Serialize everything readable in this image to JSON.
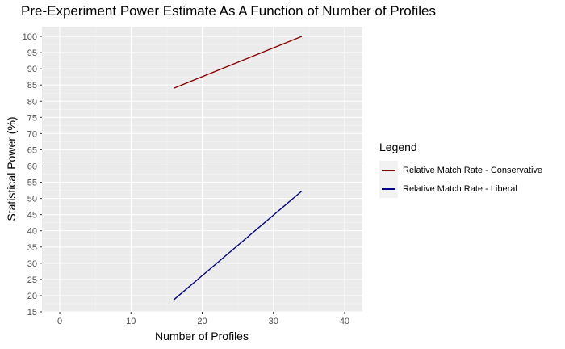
{
  "chart_data": {
    "type": "line",
    "title": "Pre-Experiment Power Estimate As A Function of Number of Profiles",
    "xlabel": "Number of Profiles",
    "ylabel": "Statistical Power (%)",
    "xlim": [
      -2.5,
      42.5
    ],
    "ylim": [
      15,
      103
    ],
    "x_ticks": [
      0,
      10,
      20,
      30,
      40
    ],
    "y_ticks": [
      15,
      20,
      25,
      30,
      35,
      40,
      45,
      50,
      55,
      60,
      65,
      70,
      75,
      80,
      85,
      90,
      95,
      100
    ],
    "grid": true,
    "legend": {
      "title": "Legend",
      "position": "right",
      "entries": [
        {
          "label": "Relative Match Rate - Conservative",
          "color": "#8b0000"
        },
        {
          "label": "Relative Match Rate - Liberal",
          "color": "#00008b"
        }
      ]
    },
    "series": [
      {
        "name": "Relative Match Rate - Conservative",
        "color": "#8b0000",
        "x": [
          16,
          34
        ],
        "y": [
          84,
          100
        ]
      },
      {
        "name": "Relative Match Rate - Liberal",
        "color": "#00008b",
        "x": [
          16,
          34
        ],
        "y": [
          18.7,
          52.3
        ]
      }
    ]
  }
}
